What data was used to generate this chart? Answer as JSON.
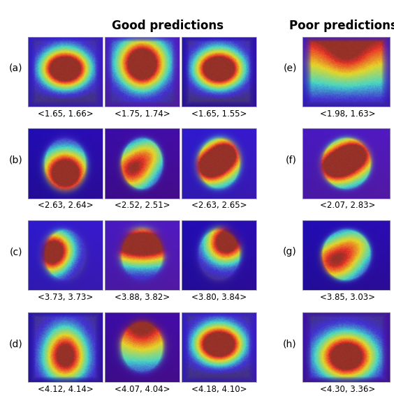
{
  "title_good": "Good predictions",
  "title_poor": "Poor predictions",
  "row_labels": [
    "(a)",
    "(b)",
    "(c)",
    "(d)"
  ],
  "poor_row_labels": [
    "(e)",
    "(f)",
    "(g)",
    "(h)"
  ],
  "good_labels": [
    [
      "<1.65, 1.66>",
      "<1.75, 1.74>",
      "<1.65, 1.55>"
    ],
    [
      "<2.63, 2.64>",
      "<2.52, 2.51>",
      "<2.63, 2.65>"
    ],
    [
      "<3.73, 3.73>",
      "<3.88, 3.82>",
      "<3.80, 3.84>"
    ],
    [
      "<4.12, 4.14>",
      "<4.07, 4.04>",
      "<4.18, 4.10>"
    ]
  ],
  "poor_labels": [
    "<1.98, 1.63>",
    "<2.07, 2.83>",
    "<3.85, 3.03>",
    "<4.30, 3.36>"
  ],
  "bg_color": "#ffffff",
  "label_fontsize": 8.5,
  "title_fontsize": 12,
  "row_label_fontsize": 10
}
